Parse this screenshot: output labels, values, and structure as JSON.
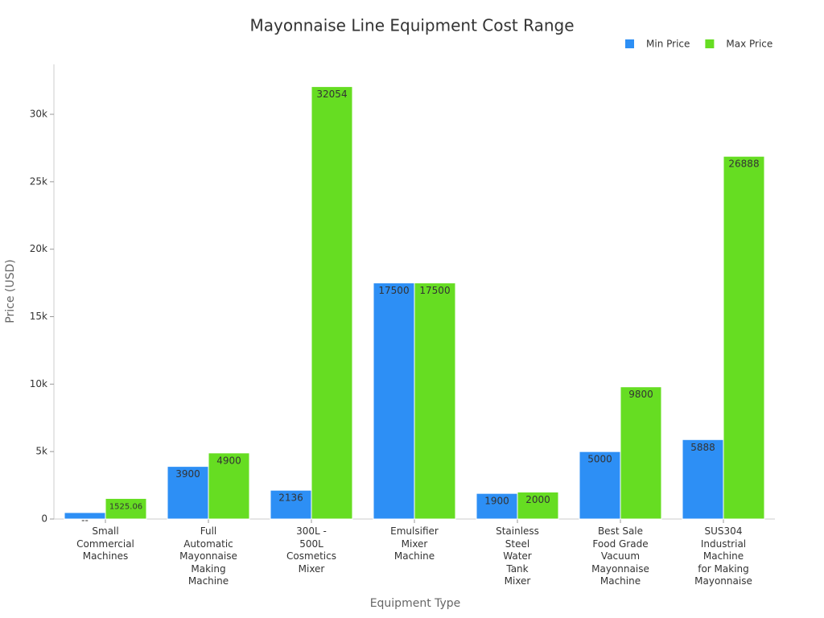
{
  "chart_data": {
    "type": "bar",
    "title": "Mayonnaise Line Equipment Cost Range",
    "x_label": "Equipment Type",
    "y_label": "Price (USD)",
    "categories": [
      "Small\nCommercial\nMachines",
      "Full\nAutomatic\nMayonnaise\nMaking\nMachine",
      "300L -\n500L\nCosmetics\nMixer",
      "Emulsifier\nMixer\nMachine",
      "Stainless\nSteel\nWater\nTank\nMixer",
      "Best Sale\nFood Grade\nVacuum\nMayonnaise\nMachine",
      "SUS304\nIndustrial\nMachine\nfor Making\nMayonnaise"
    ],
    "series": [
      {
        "name": "Min Price",
        "color": "#2d8ff5",
        "values": [
          480,
          3900,
          2136,
          17500,
          1900,
          5000,
          5888
        ],
        "value_labels": [
          "--",
          "3900",
          "2136",
          "17500",
          "1900",
          "5000",
          "5888"
        ]
      },
      {
        "name": "Max Price",
        "color": "#66dd22",
        "values": [
          1525.06,
          4900,
          32054,
          17500,
          2000,
          9800,
          26888
        ]
      }
    ],
    "ylim": [
      0,
      33700
    ],
    "yticks": [
      0,
      {
        "value": 5000,
        "label": "5k"
      },
      {
        "value": 10000,
        "label": "10k"
      },
      {
        "value": 15000,
        "label": "15k"
      },
      {
        "value": 20000,
        "label": "20k"
      },
      {
        "value": 25000,
        "label": "25k"
      },
      {
        "value": 30000,
        "label": "30k"
      }
    ],
    "legend": "top-right"
  }
}
